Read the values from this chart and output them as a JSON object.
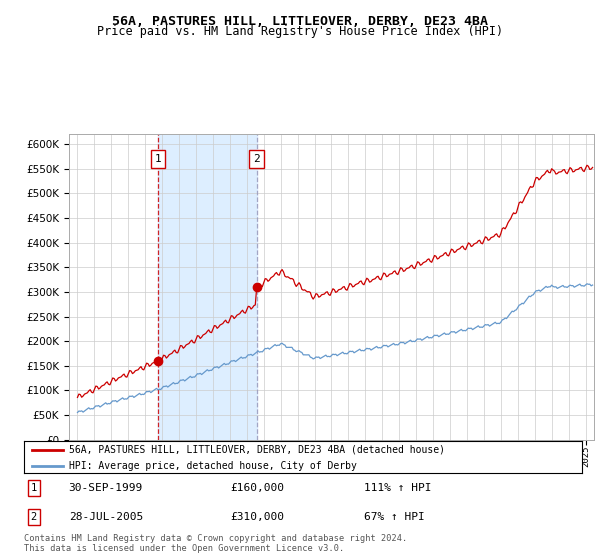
{
  "title1": "56A, PASTURES HILL, LITTLEOVER, DERBY, DE23 4BA",
  "title2": "Price paid vs. HM Land Registry's House Price Index (HPI)",
  "legend_line1": "56A, PASTURES HILL, LITTLEOVER, DERBY, DE23 4BA (detached house)",
  "legend_line2": "HPI: Average price, detached house, City of Derby",
  "footnote": "Contains HM Land Registry data © Crown copyright and database right 2024.\nThis data is licensed under the Open Government Licence v3.0.",
  "purchase1_date": "30-SEP-1999",
  "purchase1_price": 160000,
  "purchase1_hpi": "111% ↑ HPI",
  "purchase1_year": 1999.75,
  "purchase2_date": "28-JUL-2005",
  "purchase2_price": 310000,
  "purchase2_hpi": "67% ↑ HPI",
  "purchase2_year": 2005.58,
  "hpi_color": "#6699cc",
  "price_color": "#cc0000",
  "shade_color": "#ddeeff",
  "ylim_min": 0,
  "ylim_max": 620000,
  "xlim_min": 1994.5,
  "xlim_max": 2025.5
}
